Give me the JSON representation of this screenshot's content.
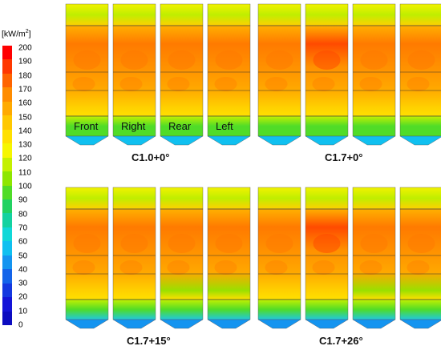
{
  "legend": {
    "title_pre": "[kW/m",
    "title_sup": "2",
    "title_post": "]",
    "ticks": [
      "200",
      "190",
      "180",
      "170",
      "160",
      "150",
      "140",
      "130",
      "120",
      "110",
      "100",
      "90",
      "80",
      "70",
      "60",
      "50",
      "40",
      "30",
      "20",
      "10",
      "0"
    ],
    "colors": [
      "#ff0000",
      "#ff3800",
      "#ff6400",
      "#ff8c00",
      "#ffaa00",
      "#ffc800",
      "#ffe000",
      "#f6f600",
      "#c4f000",
      "#8ee600",
      "#50dc28",
      "#22d262",
      "#14d2a0",
      "#10d8d8",
      "#10c0f0",
      "#1494f0",
      "#1464ea",
      "#1438e0",
      "#1414d8",
      "#0c0cc0"
    ]
  },
  "panels": [
    {
      "caption": "C1.0+0°",
      "walls": [
        "Front",
        "Right",
        "Rear",
        "Left"
      ]
    },
    {
      "caption": "C1.7+0°",
      "walls": []
    },
    {
      "caption": "C1.7+15°",
      "walls": []
    },
    {
      "caption": "C1.7+26°",
      "walls": []
    }
  ]
}
